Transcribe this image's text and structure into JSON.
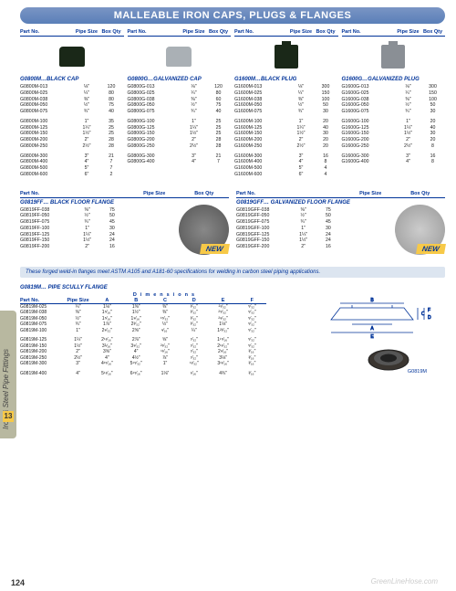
{
  "banner": "MALLEABLE IRON CAPS, PLUGS & FLANGES",
  "headers": {
    "part": "Part No.",
    "pipe": "Pipe\nSize",
    "box": "Box\nQty"
  },
  "sideTab": {
    "text": "Iron & Steel Pipe Fittings",
    "num": "13"
  },
  "pageNum": "124",
  "watermark": "GreenLineHose.com",
  "topCols": [
    {
      "title": "G0800M…BLACK CAP",
      "imgClass": "cap-black",
      "rows": [
        [
          "G0800M-013",
          "⅛\"",
          "120"
        ],
        [
          "G0800M-025",
          "¼\"",
          "80"
        ],
        [
          "G0800M-038",
          "⅜\"",
          "80"
        ],
        [
          "G0800M-050",
          "½\"",
          "75"
        ],
        [
          "G0800M-075",
          "¾\"",
          "40"
        ],
        [
          "",
          "",
          ""
        ],
        [
          "G0800M-100",
          "1\"",
          "35"
        ],
        [
          "G0800M-125",
          "1¼\"",
          "25"
        ],
        [
          "G0800M-150",
          "1½\"",
          "25"
        ],
        [
          "G0800M-200",
          "2\"",
          "28"
        ],
        [
          "G0800M-250",
          "2½\"",
          "28"
        ],
        [
          "",
          "",
          ""
        ],
        [
          "G0800M-300",
          "3\"",
          "21"
        ],
        [
          "G0800M-400",
          "4\"",
          "7"
        ],
        [
          "G0800M-500",
          "5\"",
          "7"
        ],
        [
          "G0800M-600",
          "6\"",
          "2"
        ]
      ]
    },
    {
      "title": "G0800G…GALVANIZED CAP",
      "imgClass": "cap-galv",
      "rows": [
        [
          "G0800G-013",
          "⅛\"",
          "120"
        ],
        [
          "G0800G-025",
          "¼\"",
          "80"
        ],
        [
          "G0800G-038",
          "⅜\"",
          "60"
        ],
        [
          "G0800G-050",
          "½\"",
          "75"
        ],
        [
          "G0800G-075",
          "¾\"",
          "40"
        ],
        [
          "",
          "",
          ""
        ],
        [
          "G0800G-100",
          "1\"",
          "25"
        ],
        [
          "G0800G-125",
          "1¼\"",
          "25"
        ],
        [
          "G0800G-150",
          "1½\"",
          "25"
        ],
        [
          "G0800G-200",
          "2\"",
          "28"
        ],
        [
          "G0800G-250",
          "2½\"",
          "28"
        ],
        [
          "",
          "",
          ""
        ],
        [
          "G0800G-300",
          "3\"",
          "21"
        ],
        [
          "G0800G-400",
          "4\"",
          "7"
        ]
      ]
    },
    {
      "title": "G1600M…BLACK PLUG",
      "imgClass": "plug-black",
      "rows": [
        [
          "G1600M-013",
          "⅛\"",
          "300"
        ],
        [
          "G1600M-025",
          "¼\"",
          "150"
        ],
        [
          "G1600M-038",
          "⅜\"",
          "100"
        ],
        [
          "G1600M-050",
          "½\"",
          "50"
        ],
        [
          "G1600M-075",
          "¾\"",
          "30"
        ],
        [
          "",
          "",
          ""
        ],
        [
          "G1600M-100",
          "1\"",
          "20"
        ],
        [
          "G1600M-125",
          "1¼\"",
          "40"
        ],
        [
          "G1600M-150",
          "1½\"",
          "30"
        ],
        [
          "G1600M-200",
          "2\"",
          "20"
        ],
        [
          "G1600M-250",
          "2½\"",
          "20"
        ],
        [
          "",
          "",
          ""
        ],
        [
          "G1600M-300",
          "3\"",
          "16"
        ],
        [
          "G1600M-400",
          "4\"",
          "8"
        ],
        [
          "G1600M-500",
          "5\"",
          "4"
        ],
        [
          "G1600M-600",
          "6\"",
          "4"
        ]
      ]
    },
    {
      "title": "G1600G…GALVANIZED PLUG",
      "imgClass": "plug-galv",
      "rows": [
        [
          "G1600G-013",
          "⅛\"",
          "300"
        ],
        [
          "G1600G-025",
          "¼\"",
          "150"
        ],
        [
          "G1600G-038",
          "⅜\"",
          "100"
        ],
        [
          "G1600G-050",
          "½\"",
          "50"
        ],
        [
          "G1600G-075",
          "¾\"",
          "30"
        ],
        [
          "",
          "",
          ""
        ],
        [
          "G1600G-100",
          "1\"",
          "20"
        ],
        [
          "G1600G-125",
          "1¼\"",
          "40"
        ],
        [
          "G1600G-150",
          "1½\"",
          "30"
        ],
        [
          "G1600G-200",
          "2\"",
          "20"
        ],
        [
          "G1600G-250",
          "2½\"",
          "8"
        ],
        [
          "",
          "",
          ""
        ],
        [
          "G1600G-300",
          "3\"",
          "16"
        ],
        [
          "G1600G-400",
          "4\"",
          "8"
        ]
      ]
    }
  ],
  "flangeCols": [
    {
      "title": "G0819FF… BLACK FLOOR FLANGE",
      "galv": false,
      "rows": [
        [
          "G0819FF-038",
          "⅜\"",
          "75"
        ],
        [
          "G0819FF-050",
          "½\"",
          "50"
        ],
        [
          "G0819FF-075",
          "¾\"",
          "45"
        ],
        [
          "G0819FF-100",
          "1\"",
          "30"
        ],
        [
          "G0819FF-125",
          "1¼\"",
          "24"
        ],
        [
          "G0819FF-150",
          "1½\"",
          "24"
        ],
        [
          "G0819FF-200",
          "2\"",
          "16"
        ]
      ]
    },
    {
      "title": "G0819GFF… GALVANIZED FLOOR FLANGE",
      "galv": true,
      "rows": [
        [
          "G0819GFF-038",
          "⅜\"",
          "75"
        ],
        [
          "G0819GFF-050",
          "½\"",
          "50"
        ],
        [
          "G0819GFF-075",
          "¾\"",
          "45"
        ],
        [
          "G0819GFF-100",
          "1\"",
          "30"
        ],
        [
          "G0819GFF-125",
          "1¼\"",
          "24"
        ],
        [
          "G0819GFF-150",
          "1½\"",
          "24"
        ],
        [
          "G0819GFF-200",
          "2\"",
          "16"
        ]
      ]
    }
  ],
  "newLabel": "NEW",
  "note": "These forged weld-in flanges meet ASTM A105 and A181-60 specifications for welding in carbon steel piping applications.",
  "scully": {
    "title": "G0819M… PIPE SCULLY FLANGE",
    "dimLabel": "Dimensions",
    "headers": [
      "Part No.",
      "Pipe Size",
      "A",
      "B",
      "C",
      "D",
      "E",
      "F"
    ],
    "rows": [
      [
        "G0819M-025",
        "¼\"",
        "1⅛\"",
        "1⅜\"",
        "⅜\"",
        "³⁄₃₂\"",
        "²¹⁄₃₂\"",
        "⁵⁄₃₂\""
      ],
      [
        "G0819M-038",
        "⅜\"",
        "1⁵⁄₁₆\"",
        "1½\"",
        "⅜\"",
        "³⁄₃₂\"",
        "²⁵⁄₃₂\"",
        "⁵⁄₃₂\""
      ],
      [
        "G0819M-050",
        "½\"",
        "1⁵⁄₁₆\"",
        "1⁹⁄₁₆\"",
        "¹⁵⁄₃₂\"",
        "³⁄₃₂\"",
        "²⁹⁄₃₂\"",
        "⁵⁄₃₂\""
      ],
      [
        "G0819M-075",
        "¾\"",
        "1⅞\"",
        "2³⁄₃₂\"",
        "½\"",
        "³⁄₃₂\"",
        "1⅛\"",
        "⁵⁄₃₂\""
      ],
      [
        "G0819M-100",
        "1\"",
        "2⁹⁄₃₂\"",
        "2⅝\"",
        "⁹⁄₁₆\"",
        "¼\"",
        "1²³⁄₃₂\"",
        "⁵⁄₃₂\""
      ],
      [
        "",
        "",
        "",
        "",
        "",
        "",
        "",
        ""
      ],
      [
        "G0819M-125",
        "1¼\"",
        "2¹¹⁄₁₆\"",
        "2⅞\"",
        "⅝\"",
        "⁷⁄₃₂\"",
        "1¹⁵⁄₁₆\"",
        "⁵⁄₃₂\""
      ],
      [
        "G0819M-150",
        "1½\"",
        "3⅟₁₆\"",
        "3⁹⁄₃₂\"",
        "²¹⁄₃₂\"",
        "⁷⁄₃₂\"",
        "2¹¹⁄₃₂\"",
        "⁵⁄₃₂\""
      ],
      [
        "G0819M-200",
        "2\"",
        "3⅝\"",
        "4\"",
        "¹¹⁄₁₆\"",
        "⁷⁄₃₂\"",
        "2⁹⁄₁₆\"",
        "³⁄₁₆\""
      ],
      [
        "G0819M-250",
        "2½\"",
        "4\"",
        "4½\"",
        "⅞\"",
        "⁷⁄₃₂\"",
        "3⅛\"",
        "³⁄₁₆\""
      ],
      [
        "G0819M-300",
        "3\"",
        "4¹⁵⁄₁₆\"",
        "5¹⁵⁄₃₂\"",
        "1\"",
        "¹¹⁄₃₂\"",
        "3¹¹⁄₁₆\"",
        "³⁄₁₆\""
      ],
      [
        "",
        "",
        "",
        "",
        "",
        "",
        "",
        ""
      ],
      [
        "G0819M-400",
        "4\"",
        "5¹¹⁄₁₆\"",
        "6¹⁵⁄₁₆\"",
        "1⅛\"",
        "¹⁄₁₆\"",
        "4¾\"",
        "³⁄₁₆\""
      ]
    ],
    "diagramLabel": "G0819M"
  }
}
